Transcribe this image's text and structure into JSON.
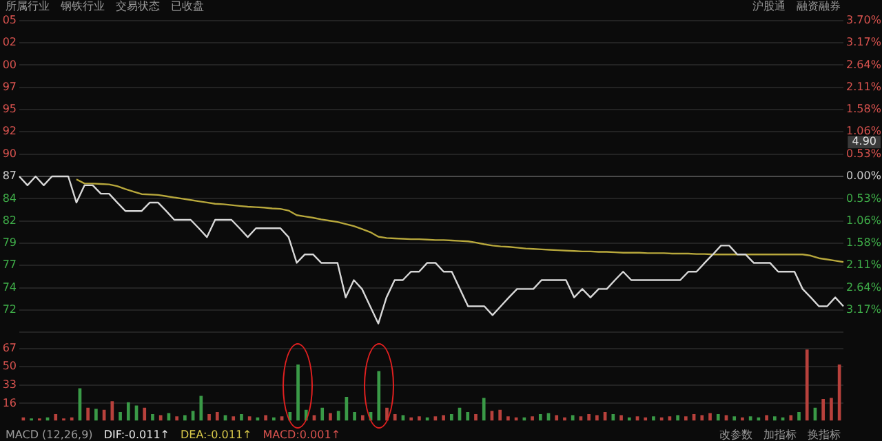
{
  "chart_data": [
    {
      "type": "line",
      "categories": [
        null,
        null,
        null,
        null,
        null,
        null,
        null,
        null,
        null,
        null,
        null,
        null,
        null,
        null,
        null,
        null,
        null,
        null,
        null,
        null,
        null,
        null,
        null,
        null,
        null,
        null,
        null,
        null,
        null,
        null,
        null,
        null,
        null,
        null,
        null,
        null,
        null,
        null,
        null,
        null,
        null,
        null,
        null,
        null,
        null,
        null,
        null,
        null,
        null,
        null,
        null,
        null,
        null,
        null,
        null,
        null,
        null,
        null,
        null,
        null,
        null,
        null,
        null,
        null,
        null,
        null,
        null,
        null,
        null,
        null,
        null,
        null,
        null,
        null,
        null,
        null,
        null,
        null,
        null,
        null,
        null,
        null,
        null,
        null,
        null,
        null,
        null,
        null,
        null,
        null,
        null,
        null,
        null,
        null,
        null,
        null,
        null,
        null,
        null,
        null,
        null,
        null
      ],
      "series": [
        {
          "color": "#d8d8d8",
          "values": [
            0,
            -0.21,
            0,
            -0.21,
            0,
            0,
            0,
            -0.62,
            -0.21,
            -0.21,
            -0.41,
            -0.41,
            -0.62,
            -0.82,
            -0.82,
            -0.82,
            -0.62,
            -0.62,
            -0.82,
            -1.03,
            -1.03,
            -1.03,
            -1.23,
            -1.44,
            -1.03,
            -1.03,
            -1.03,
            -1.23,
            -1.44,
            -1.23,
            -1.23,
            -1.23,
            -1.23,
            -1.44,
            -2.05,
            -1.85,
            -1.85,
            -2.05,
            -2.05,
            -2.05,
            -2.87,
            -2.46,
            -2.67,
            -3.08,
            -3.49,
            -2.87,
            -2.46,
            -2.46,
            -2.26,
            -2.26,
            -2.05,
            -2.05,
            -2.26,
            -2.26,
            -2.67,
            -3.08,
            -3.08,
            -3.08,
            -3.29,
            -3.08,
            -2.87,
            -2.67,
            -2.67,
            -2.67,
            -2.46,
            -2.46,
            -2.46,
            -2.46,
            -2.87,
            -2.67,
            -2.87,
            -2.67,
            -2.67,
            -2.46,
            -2.26,
            -2.46,
            -2.46,
            -2.46,
            -2.46,
            -2.46,
            -2.46,
            -2.46,
            -2.26,
            -2.26,
            -2.05,
            -1.85,
            -1.64,
            -1.64,
            -1.85,
            -1.85,
            -2.05,
            -2.05,
            -2.05,
            -2.26,
            -2.26,
            -2.26,
            -2.67,
            -2.87,
            -3.08,
            -3.08,
            -2.87,
            -3.08
          ]
        },
        {
          "color": "#b8a83c",
          "values": [
            null,
            null,
            null,
            null,
            null,
            null,
            null,
            -0.07,
            -0.17,
            -0.17,
            -0.18,
            -0.19,
            -0.23,
            -0.3,
            -0.36,
            -0.42,
            -0.43,
            -0.44,
            -0.47,
            -0.5,
            -0.53,
            -0.56,
            -0.59,
            -0.62,
            -0.65,
            -0.66,
            -0.68,
            -0.7,
            -0.72,
            -0.73,
            -0.74,
            -0.76,
            -0.77,
            -0.81,
            -0.92,
            -0.95,
            -0.98,
            -1.02,
            -1.05,
            -1.08,
            -1.13,
            -1.18,
            -1.25,
            -1.32,
            -1.43,
            -1.46,
            -1.47,
            -1.48,
            -1.49,
            -1.49,
            -1.5,
            -1.51,
            -1.51,
            -1.52,
            -1.53,
            -1.54,
            -1.57,
            -1.61,
            -1.64,
            -1.66,
            -1.67,
            -1.69,
            -1.71,
            -1.72,
            -1.73,
            -1.74,
            -1.75,
            -1.76,
            -1.77,
            -1.78,
            -1.78,
            -1.79,
            -1.79,
            -1.8,
            -1.81,
            -1.81,
            -1.81,
            -1.82,
            -1.82,
            -1.82,
            -1.83,
            -1.83,
            -1.83,
            -1.84,
            -1.84,
            -1.85,
            -1.85,
            -1.85,
            -1.85,
            -1.85,
            -1.85,
            -1.85,
            -1.85,
            -1.85,
            -1.85,
            -1.85,
            -1.85,
            -1.88,
            -1.94,
            -1.97,
            -2.0,
            -2.03
          ]
        }
      ],
      "ylim": [
        -3.7,
        3.7
      ],
      "yticks": [
        {
          "value": 3.7,
          "label": "3.70%"
        },
        {
          "value": 3.17,
          "label": "3.17%"
        },
        {
          "value": 2.64,
          "label": "2.64%"
        },
        {
          "value": 2.11,
          "label": "2.11%"
        },
        {
          "value": 1.58,
          "label": "1.58%"
        },
        {
          "value": 1.06,
          "label": "1.06%"
        },
        {
          "value": 0.53,
          "label": "0.53%"
        },
        {
          "value": 0,
          "label": "0.00%"
        },
        {
          "value": -0.53,
          "label": "0.53%"
        },
        {
          "value": -1.06,
          "label": "1.06%"
        },
        {
          "value": -1.58,
          "label": "1.58%"
        },
        {
          "value": -2.11,
          "label": "2.11%"
        },
        {
          "value": -2.64,
          "label": "2.64%"
        },
        {
          "value": -3.17,
          "label": "3.17%"
        },
        {
          "value": -3.7,
          "label": null
        }
      ],
      "grid": "y",
      "annotations": [
        "所属行业",
        "钢铁行业",
        "交易状态",
        "已收盘",
        "沪股通",
        "融资融券",
        "4.90",
        "05",
        "02",
        "00",
        "97",
        "95",
        "92",
        "90",
        "87",
        "84",
        "82",
        "79",
        "77",
        "74",
        "72"
      ]
    },
    {
      "type": "bar",
      "categories": [
        null,
        null,
        null,
        null,
        null,
        null,
        null,
        null,
        null,
        null,
        null,
        null,
        null,
        null,
        null,
        null,
        null,
        null,
        null,
        null,
        null,
        null,
        null,
        null,
        null,
        null,
        null,
        null,
        null,
        null,
        null,
        null,
        null,
        null,
        null,
        null,
        null,
        null,
        null,
        null,
        null,
        null,
        null,
        null,
        null,
        null,
        null,
        null,
        null,
        null,
        null,
        null,
        null,
        null,
        null,
        null,
        null,
        null,
        null,
        null,
        null,
        null,
        null,
        null,
        null,
        null,
        null,
        null,
        null,
        null,
        null,
        null,
        null,
        null,
        null,
        null,
        null,
        null,
        null,
        null,
        null,
        null,
        null,
        null,
        null,
        null,
        null,
        null,
        null,
        null,
        null,
        null,
        null,
        null,
        null,
        null,
        null,
        null,
        null,
        null,
        null,
        null
      ],
      "values": [
        3,
        2,
        2,
        3,
        6,
        2,
        3,
        30,
        12,
        11,
        10,
        18,
        8,
        17,
        14,
        12,
        6,
        5,
        7,
        4,
        5,
        9,
        23,
        6,
        8,
        5,
        4,
        6,
        4,
        3,
        5,
        3,
        4,
        8,
        52,
        10,
        5,
        12,
        7,
        9,
        22,
        8,
        5,
        8,
        46,
        12,
        6,
        5,
        3,
        4,
        3,
        4,
        5,
        6,
        12,
        8,
        6,
        21,
        9,
        10,
        4,
        3,
        3,
        4,
        6,
        7,
        5,
        3,
        5,
        4,
        6,
        5,
        8,
        6,
        5,
        3,
        4,
        3,
        4,
        3,
        4,
        5,
        4,
        6,
        5,
        7,
        6,
        5,
        4,
        3,
        4,
        3,
        5,
        4,
        3,
        5,
        8,
        66,
        12,
        20,
        21,
        52
      ],
      "colors": [
        "#b8413c",
        "#3a9a47",
        "#b8413c",
        "#3a9a47",
        "#b8413c",
        "#b8413c",
        "#b8413c",
        "#3a9a47",
        "#b8413c",
        "#3a9a47",
        "#b8413c",
        "#b8413c",
        "#3a9a47",
        "#3a9a47",
        "#3a9a47",
        "#b8413c",
        "#3a9a47",
        "#b8413c",
        "#3a9a47",
        "#b8413c",
        "#3a9a47",
        "#3a9a47",
        "#3a9a47",
        "#b8413c",
        "#b8413c",
        "#3a9a47",
        "#b8413c",
        "#3a9a47",
        "#b8413c",
        "#3a9a47",
        "#b8413c",
        "#3a9a47",
        "#b8413c",
        "#3a9a47",
        "#3a9a47",
        "#3a9a47",
        "#b8413c",
        "#3a9a47",
        "#b8413c",
        "#3a9a47",
        "#3a9a47",
        "#3a9a47",
        "#b8413c",
        "#3a9a47",
        "#3a9a47",
        "#b8413c",
        "#b8413c",
        "#3a9a47",
        "#b8413c",
        "#b8413c",
        "#3a9a47",
        "#b8413c",
        "#b8413c",
        "#3a9a47",
        "#3a9a47",
        "#3a9a47",
        "#b8413c",
        "#3a9a47",
        "#b8413c",
        "#b8413c",
        "#b8413c",
        "#b8413c",
        "#3a9a47",
        "#b8413c",
        "#3a9a47",
        "#3a9a47",
        "#b8413c",
        "#b8413c",
        "#3a9a47",
        "#b8413c",
        "#b8413c",
        "#b8413c",
        "#b8413c",
        "#3a9a47",
        "#b8413c",
        "#3a9a47",
        "#b8413c",
        "#b8413c",
        "#3a9a47",
        "#b8413c",
        "#b8413c",
        "#3a9a47",
        "#b8413c",
        "#b8413c",
        "#b8413c",
        "#b8413c",
        "#3a9a47",
        "#b8413c",
        "#3a9a47",
        "#b8413c",
        "#3a9a47",
        "#3a9a47",
        "#b8413c",
        "#3a9a47",
        "#3a9a47",
        "#b8413c",
        "#3a9a47",
        "#b8413c",
        "#3a9a47",
        "#b8413c",
        "#b8413c",
        "#b8413c"
      ],
      "ylim": [
        0,
        67
      ],
      "yticks": [
        16,
        33,
        50,
        67
      ],
      "grid": "y",
      "annotations": [
        "MACD (12,26,9)",
        "DIF:-0.011↑",
        "DEA:-0.011↑",
        "MACD:0.001↑",
        "改参数",
        "加指标",
        "换指标"
      ]
    }
  ]
}
